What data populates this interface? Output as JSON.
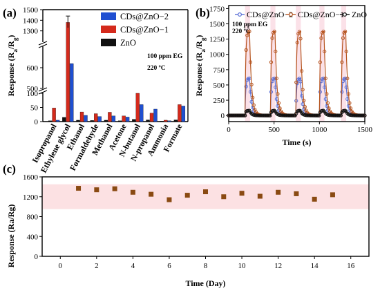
{
  "chart_data": [
    {
      "type": "bar",
      "panel_label": "(a)",
      "ylabel": "Response (R",
      "ylabel_sub_a": "a",
      "ylabel_mid": "/R",
      "ylabel_sub_g": "g",
      "ylabel_end": ")",
      "ybreaks": [
        {
          "from": 700,
          "to": 1200
        },
        {
          "from": 500,
          "to": 580
        }
      ],
      "yticks": [
        "0",
        "50",
        "100",
        "500",
        "600",
        "1300",
        "1400",
        "1500"
      ],
      "annotation": [
        "100 ppm EG",
        "220 ºC"
      ],
      "legend_position": "top-right",
      "categories": [
        "Isopropanol",
        "Ethylene glycol",
        "Ethanol",
        "Formaldehyde",
        "Methanol",
        "Acetone",
        "N-butanol",
        "N-propanol",
        "Ammonia",
        "Formate"
      ],
      "series": [
        {
          "name": "CDs@ZnO−2",
          "color": "#1f4fd1",
          "values": [
            5,
            620,
            22,
            18,
            20,
            16,
            60,
            44,
            3,
            55
          ]
        },
        {
          "name": "CDs@ZnO−1",
          "color": "#d42a1c",
          "values": [
            48,
            1380,
            34,
            28,
            33,
            20,
            100,
            30,
            5,
            60
          ]
        },
        {
          "name": "ZnO",
          "color": "#111111",
          "values": [
            3,
            15,
            5,
            4,
            5,
            3,
            8,
            6,
            2,
            6
          ]
        }
      ]
    },
    {
      "type": "line",
      "panel_label": "(b)",
      "xlabel": "Time (s)",
      "ylabel": "Response (R",
      "ylabel_sub_a": "a",
      "ylabel_mid": "/R",
      "ylabel_sub_g": "g",
      "ylabel_end": ")",
      "xlim": [
        0,
        1500
      ],
      "ylim": [
        -100,
        1800
      ],
      "xticks": [
        "0",
        "500",
        "1000",
        "1500"
      ],
      "yticks": [
        "0",
        "250",
        "500",
        "750",
        "1000",
        "1250",
        "1500",
        "1750"
      ],
      "annotation": [
        "100 ppm EG",
        "220 ºC"
      ],
      "legend_position": "top",
      "pulse_starts": [
        180,
        460,
        740,
        1000,
        1240
      ],
      "series": [
        {
          "name": "CDs@ZnO−2",
          "color": "#5a6fd6",
          "peak": 610
        },
        {
          "name": "CDs@ZnO−1",
          "color": "#b5541e",
          "peak": 1380
        },
        {
          "name": "ZnO",
          "color": "#111111",
          "peak": 80
        }
      ]
    },
    {
      "type": "scatter",
      "panel_label": "(c)",
      "xlabel": "Time (Day)",
      "ylabel": "Response (Ra/Rg)",
      "xlim": [
        -1,
        17
      ],
      "ylim": [
        0,
        1600
      ],
      "xticks": [
        "0",
        "2",
        "4",
        "6",
        "8",
        "10",
        "12",
        "14",
        "16"
      ],
      "yticks": [
        "0",
        "400",
        "800",
        "1200",
        "1600"
      ],
      "band": [
        950,
        1450
      ],
      "marker_color": "#8a4a12",
      "x": [
        1,
        2,
        3,
        4,
        5,
        6,
        7,
        8,
        9,
        10,
        11,
        12,
        13,
        14,
        15
      ],
      "y": [
        1370,
        1340,
        1360,
        1290,
        1250,
        1140,
        1230,
        1300,
        1200,
        1270,
        1210,
        1290,
        1260,
        1150,
        1240
      ]
    }
  ]
}
